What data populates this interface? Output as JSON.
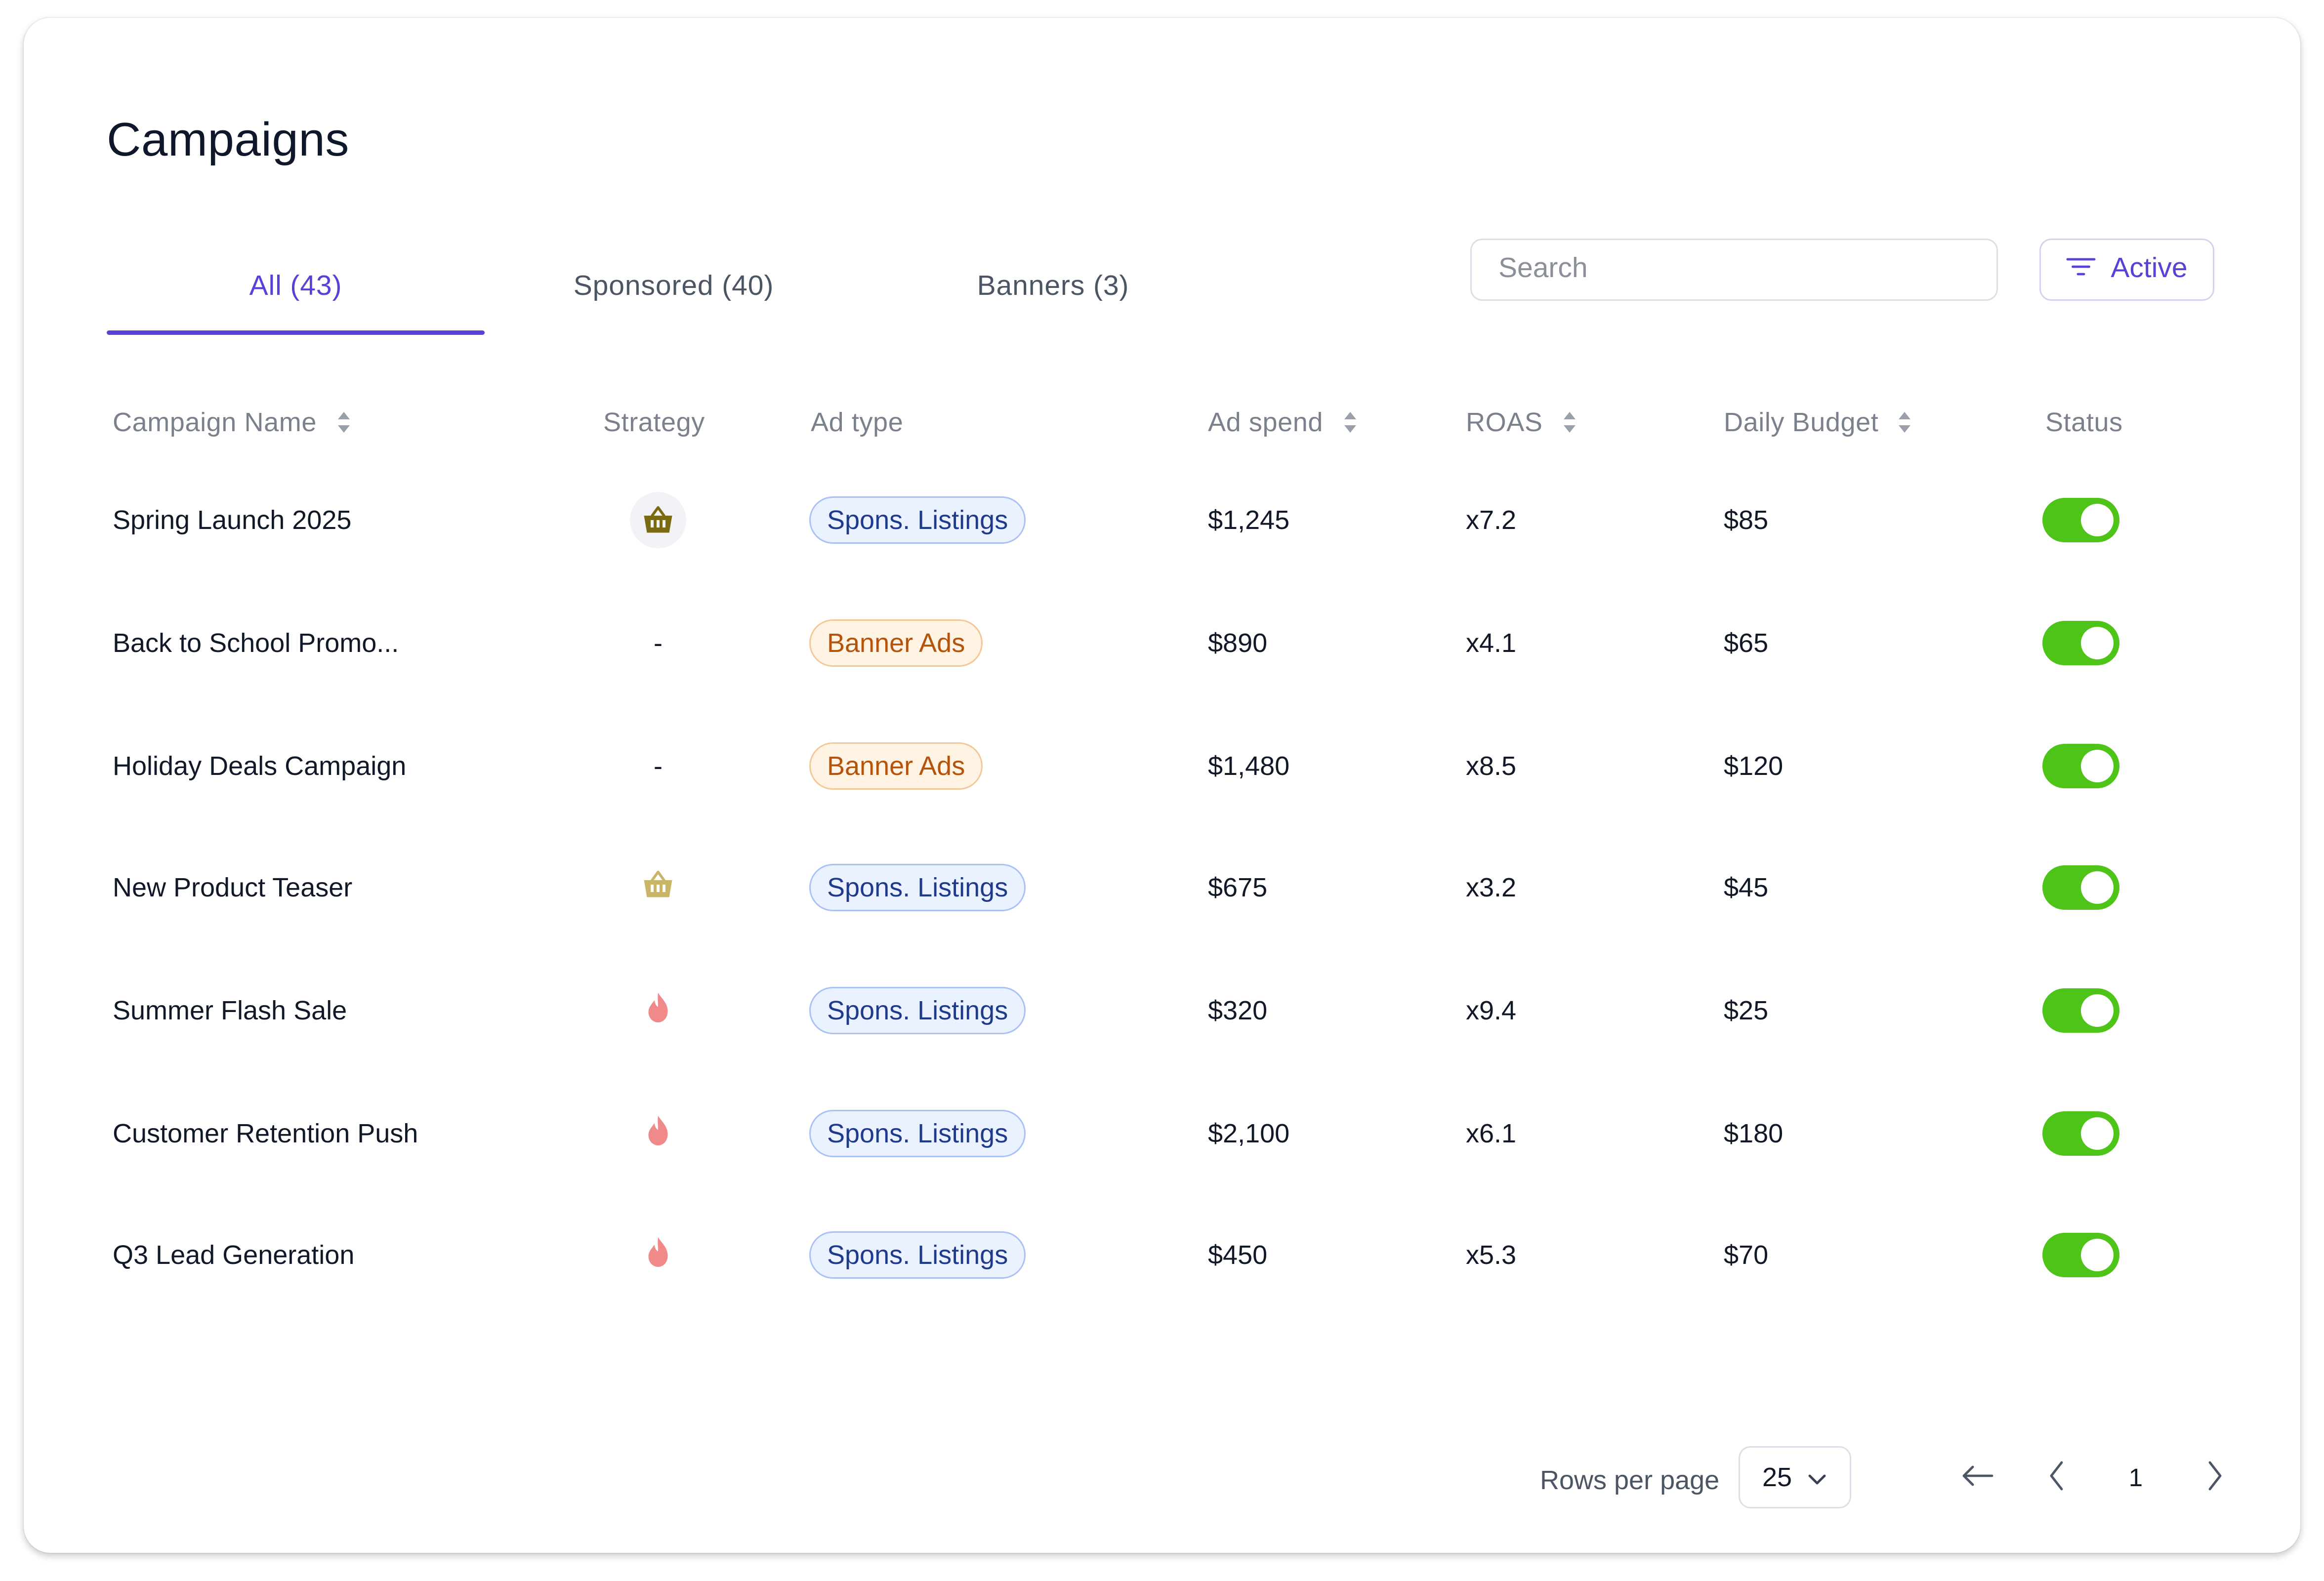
{
  "page": {
    "title": "Campaigns"
  },
  "tabs": [
    {
      "label": "All (43)",
      "active": true
    },
    {
      "label": "Sponsored (40)",
      "active": false
    },
    {
      "label": "Banners (3)",
      "active": false
    }
  ],
  "search": {
    "placeholder": "Search",
    "value": ""
  },
  "filter": {
    "label": "Active",
    "icon": "filter-icon"
  },
  "columns": {
    "campaign_name": "Campaign Name",
    "strategy": "Strategy",
    "ad_type": "Ad type",
    "ad_spend": "Ad spend",
    "roas": "ROAS",
    "daily_budget": "Daily Budget",
    "status": "Status"
  },
  "rows": [
    {
      "name": "Spring Launch 2025",
      "strategy": "basket-icon",
      "ad_type": "Spons. Listings",
      "ad_spend": "$1,245",
      "roas": "x7.2",
      "daily_budget": "$85",
      "status": true
    },
    {
      "name": "Back to School Promo...",
      "strategy": "-",
      "ad_type": "Banner Ads",
      "ad_spend": "$890",
      "roas": "x4.1",
      "daily_budget": "$65",
      "status": true
    },
    {
      "name": "Holiday Deals Campaign",
      "strategy": "-",
      "ad_type": "Banner Ads",
      "ad_spend": "$1,480",
      "roas": "x8.5",
      "daily_budget": "$120",
      "status": true
    },
    {
      "name": "New Product Teaser",
      "strategy": "basket-icon",
      "ad_type": "Spons. Listings",
      "ad_spend": "$675",
      "roas": "x3.2",
      "daily_budget": "$45",
      "status": true
    },
    {
      "name": "Summer Flash Sale",
      "strategy": "flame-icon",
      "ad_type": "Spons. Listings",
      "ad_spend": "$320",
      "roas": "x9.4",
      "daily_budget": "$25",
      "status": true
    },
    {
      "name": "Customer Retention Push",
      "strategy": "flame-icon",
      "ad_type": "Spons. Listings",
      "ad_spend": "$2,100",
      "roas": "x6.1",
      "daily_budget": "$180",
      "status": true
    },
    {
      "name": "Q3 Lead Generation",
      "strategy": "flame-icon",
      "ad_type": "Spons. Listings",
      "ad_spend": "$450",
      "roas": "x5.3",
      "daily_budget": "$70",
      "status": true
    }
  ],
  "pagination": {
    "rows_per_page_label": "Rows per page",
    "rows_per_page": "25",
    "current_page": "1"
  },
  "colors": {
    "accent": "#5b3fd6",
    "toggle_on": "#4dc417",
    "spons_badge_bg": "#eaf1ff",
    "spons_badge_text": "#1f3a8a",
    "banner_badge_bg": "#fff3e3",
    "banner_badge_text": "#b45309",
    "basket_dark": "#7a6a12",
    "basket_light": "#c9b567",
    "flame": "#f08a8a"
  }
}
